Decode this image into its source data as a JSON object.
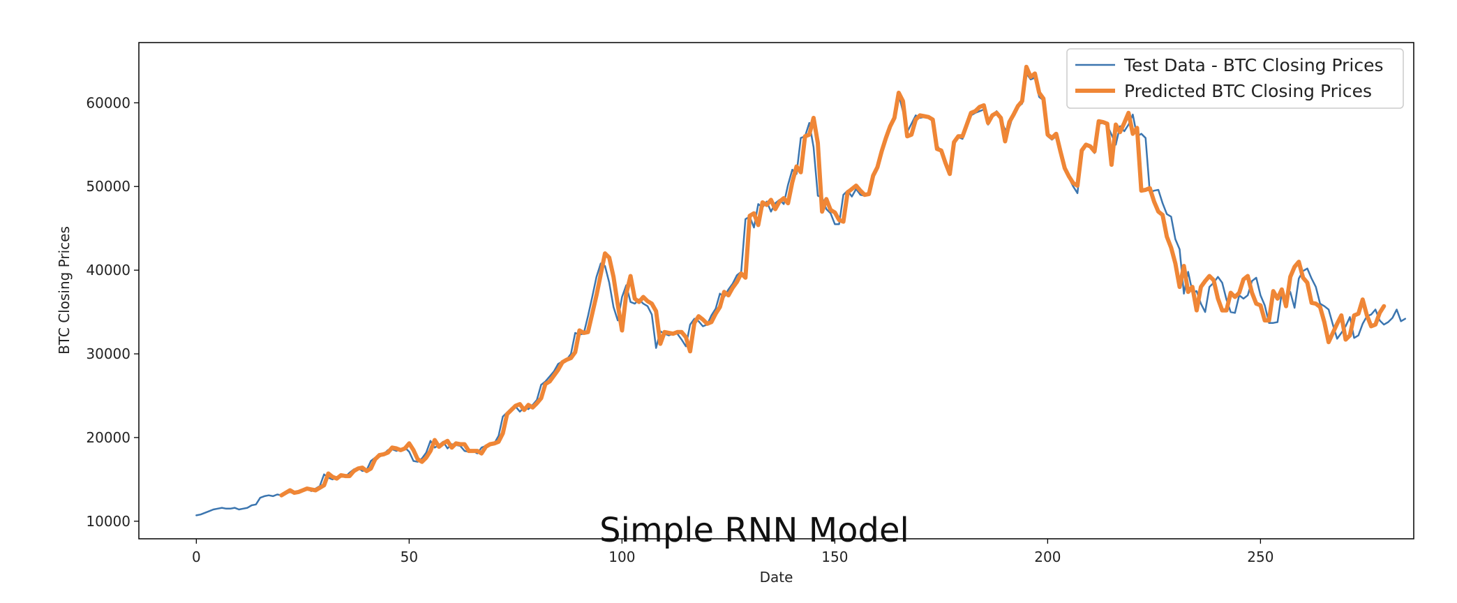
{
  "chart_data": {
    "type": "line",
    "title": "Simple RNN Model",
    "xlabel": "Date",
    "ylabel": "BTC Closing Prices",
    "xlim": [
      -13.5,
      286
    ],
    "ylim": [
      7900,
      67200
    ],
    "x_ticks": [
      0,
      50,
      100,
      150,
      200,
      250
    ],
    "y_ticks": [
      10000,
      20000,
      30000,
      40000,
      50000,
      60000
    ],
    "grid": false,
    "legend_position": "top-right",
    "colors": {
      "test": "#3b75af",
      "predicted": "#ef8636"
    },
    "series": [
      {
        "name": "Test Data - BTC Closing Prices",
        "start_x": 0,
        "values": [
          10700,
          10800,
          11000,
          11200,
          11400,
          11500,
          11600,
          11500,
          11500,
          11600,
          11400,
          11500,
          11600,
          11900,
          12000,
          12800,
          13000,
          13100,
          13000,
          13200,
          13100,
          13300,
          13500,
          13300,
          13500,
          13700,
          13900,
          13600,
          13900,
          14200,
          15600,
          15200,
          15000,
          15300,
          15400,
          15300,
          15800,
          16200,
          16400,
          16000,
          16100,
          17200,
          17600,
          17700,
          18000,
          18500,
          18600,
          18400,
          18600,
          18800,
          18300,
          17200,
          17100,
          17500,
          18200,
          19600,
          18800,
          19100,
          19500,
          18700,
          19200,
          19100,
          19000,
          18400,
          18300,
          18400,
          18100,
          18800,
          19000,
          19200,
          19300,
          20200,
          22500,
          23000,
          23500,
          23700,
          23100,
          23600,
          23400,
          23900,
          24500,
          26300,
          26700,
          27300,
          27900,
          28800,
          29100,
          29300,
          30000,
          32500,
          32300,
          32400,
          34500,
          36800,
          39200,
          40800,
          40500,
          38500,
          35600,
          34000,
          36800,
          38200,
          36200,
          36000,
          36500,
          36000,
          35700,
          34700,
          30700,
          32700,
          32400,
          32200,
          32400,
          32400,
          31700,
          30900,
          33500,
          34200,
          33900,
          33300,
          33500,
          34600,
          35400,
          37200,
          36800,
          37700,
          38400,
          39400,
          39800,
          46100,
          46400,
          45100,
          47900,
          47500,
          48200,
          47000,
          48000,
          48400,
          47900,
          50200,
          52000,
          51500,
          55800,
          56000,
          57600,
          54700,
          48900,
          48700,
          47300,
          46800,
          45500,
          45500,
          49000,
          49500,
          48800,
          49700,
          49000,
          48900,
          49200,
          51000,
          52000,
          54000,
          55500,
          57000,
          58000,
          61000,
          59000,
          56500,
          57500,
          58500,
          58200,
          58300,
          58200,
          57800,
          55000,
          54000,
          52600,
          51400,
          55000,
          55900,
          55700,
          57200,
          58500,
          58800,
          59000,
          59200,
          57400,
          58300,
          59000,
          58000,
          56800,
          57000,
          58800,
          59500,
          59900,
          63500,
          62800,
          63000,
          60700,
          60300,
          56000,
          55600,
          56000,
          54000,
          52000,
          51000,
          50000,
          49200,
          54000,
          54900,
          54700,
          54000,
          57500,
          57600,
          57300,
          56200,
          55000,
          57200,
          56600,
          57400,
          58600,
          56000,
          56300,
          55800,
          49300,
          49500,
          49600,
          48000,
          46700,
          46400,
          43700,
          42500,
          37200,
          39800,
          37400,
          37500,
          36000,
          35000,
          38000,
          38500,
          39200,
          38500,
          36500,
          35000,
          34900,
          37000,
          36600,
          37000,
          38700,
          39100,
          37000,
          35800,
          33700,
          33700,
          33800,
          37300,
          36400,
          37400,
          35500,
          39000,
          39900,
          40200,
          39000,
          38000,
          36000,
          35700,
          35300,
          33500,
          31800,
          32500,
          33300,
          34400,
          31900,
          32200,
          33600,
          34500,
          34700,
          35300,
          34000,
          33500,
          33800,
          34300,
          35300,
          33900,
          34200
        ]
      },
      {
        "name": "Predicted BTC Closing Prices",
        "start_x": 20,
        "values": [
          13100,
          13400,
          13700,
          13400,
          13500,
          13700,
          13900,
          13800,
          13700,
          14000,
          14300,
          15700,
          15300,
          15100,
          15500,
          15400,
          15400,
          16000,
          16300,
          16400,
          16000,
          16300,
          17400,
          17900,
          18000,
          18200,
          18800,
          18700,
          18500,
          18700,
          19300,
          18500,
          17400,
          17100,
          17600,
          18400,
          19700,
          18900,
          19300,
          19600,
          18800,
          19300,
          19200,
          19200,
          18400,
          18400,
          18400,
          18100,
          18900,
          19200,
          19300,
          19500,
          20500,
          22800,
          23300,
          23800,
          24000,
          23300,
          23900,
          23600,
          24100,
          24700,
          26400,
          26700,
          27400,
          28100,
          29000,
          29300,
          29500,
          30200,
          32800,
          32500,
          32600,
          34800,
          37000,
          39500,
          42000,
          41500,
          39200,
          35900,
          32800,
          37200,
          39300,
          36600,
          36200,
          36800,
          36300,
          36000,
          35100,
          31200,
          32600,
          32500,
          32400,
          32600,
          32600,
          32000,
          30300,
          33700,
          34500,
          34100,
          33600,
          33800,
          34800,
          35600,
          37400,
          37000,
          37900,
          38600,
          39600,
          39100,
          46500,
          46800,
          45400,
          48100,
          47800,
          48400,
          47300,
          48200,
          48600,
          48000,
          50500,
          52400,
          51700,
          56000,
          56200,
          58200,
          55200,
          47000,
          48500,
          47200,
          46900,
          46000,
          45800,
          49300,
          49700,
          50100,
          49500,
          49000,
          49100,
          51300,
          52300,
          54200,
          55800,
          57200,
          58200,
          61200,
          60200,
          56000,
          56200,
          58000,
          58500,
          58400,
          58300,
          58000,
          54500,
          54300,
          52800,
          51500,
          55300,
          56000,
          56000,
          57400,
          58800,
          59000,
          59500,
          59700,
          57600,
          58500,
          58800,
          58200,
          55400,
          57700,
          58600,
          59600,
          60200,
          64300,
          63100,
          63500,
          61200,
          60500,
          56200,
          55800,
          56300,
          54200,
          52200,
          51200,
          50400,
          50100,
          54300,
          55000,
          54800,
          54200,
          57800,
          57700,
          57500,
          52600,
          57400,
          56500,
          57600,
          58800,
          56300,
          57000,
          49500,
          49600,
          49800,
          48200,
          47000,
          46600,
          44000,
          42700,
          40800,
          38000,
          40500,
          37400,
          38000,
          35200,
          38000,
          38700,
          39300,
          38800,
          36600,
          35200,
          35200,
          37300,
          36800,
          37300,
          38900,
          39300,
          37300,
          36000,
          35800,
          34000,
          34000,
          37500,
          36600,
          37700,
          35700,
          39200,
          40400,
          41000,
          39100,
          38500,
          36100,
          36000,
          35600,
          33800,
          31400,
          32500,
          33600,
          34600,
          31700,
          32200,
          34600,
          34800,
          36500,
          34600,
          33300,
          33500,
          34900,
          35700
        ]
      }
    ]
  }
}
